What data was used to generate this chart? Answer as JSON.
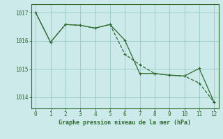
{
  "line1_x": [
    0,
    1,
    2,
    3,
    4,
    5,
    6,
    7,
    8,
    9,
    10,
    11,
    12
  ],
  "line1_y": [
    1017.0,
    1015.95,
    1016.58,
    1016.55,
    1016.45,
    1016.58,
    1015.52,
    1015.15,
    1014.84,
    1014.78,
    1014.75,
    1014.5,
    1013.82
  ],
  "line2_x": [
    0,
    1,
    2,
    3,
    4,
    5,
    6,
    7,
    8,
    9,
    10,
    11,
    12
  ],
  "line2_y": [
    1017.0,
    1015.95,
    1016.58,
    1016.55,
    1016.45,
    1016.58,
    1016.02,
    1014.84,
    1014.84,
    1014.78,
    1014.75,
    1015.02,
    1013.82
  ],
  "color": "#2d6a2d",
  "bg_color": "#cceaea",
  "grid_color": "#a0cccc",
  "xlabel": "Graphe pression niveau de la mer (hPa)",
  "xlim": [
    -0.3,
    12.3
  ],
  "ylim": [
    1013.6,
    1017.3
  ],
  "yticks": [
    1014,
    1015,
    1016,
    1017
  ],
  "xticks": [
    0,
    1,
    2,
    3,
    4,
    5,
    6,
    7,
    8,
    9,
    10,
    11,
    12
  ]
}
